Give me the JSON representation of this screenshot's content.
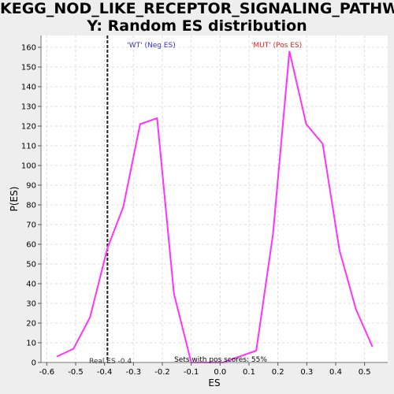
{
  "title_line1": "KEGG_NOD_LIKE_RECEPTOR_SIGNALING_PATHWA",
  "title_line2": "Y: Random ES distribution",
  "label_wt": "'WT' (Neg ES)",
  "label_mut": "'MUT' (Pos ES)",
  "real_es_label": "Real ES -0.4",
  "pos_scores_label": "Sets with pos scores: 55%",
  "colors": {
    "curve": "#ff33ff",
    "wt": "#3333cc",
    "mut": "#dd2222",
    "plot_bg": "#ffffff",
    "page_bg": "#eeeeee"
  },
  "chart_data": {
    "type": "line",
    "xlabel": "ES",
    "ylabel": "P(ES)",
    "xlim": [
      -0.62,
      0.58
    ],
    "ylim": [
      0,
      166
    ],
    "grid": true,
    "x_ticks": [
      -0.6,
      -0.5,
      -0.4,
      -0.3,
      -0.2,
      -0.1,
      0.0,
      0.1,
      0.2,
      0.3,
      0.4,
      0.5
    ],
    "x_tick_labels": [
      "-0.6",
      "-0.5",
      "-0.4",
      "-0.3",
      "-0.2",
      "-0.1",
      "0.0",
      "0.1",
      "0.2",
      "0.3",
      "0.4",
      "0.5"
    ],
    "y_ticks": [
      0,
      10,
      20,
      30,
      40,
      50,
      60,
      70,
      80,
      90,
      100,
      110,
      120,
      130,
      140,
      150,
      160
    ],
    "y_tick_labels": [
      "0",
      "10",
      "20",
      "30",
      "40",
      "50",
      "60",
      "70",
      "80",
      "90",
      "100",
      "110",
      "120",
      "130",
      "140",
      "150",
      "160"
    ],
    "real_es": -0.39,
    "series": [
      {
        "x": [
          -0.565,
          -0.507,
          -0.45,
          -0.39,
          -0.335,
          -0.277,
          -0.218,
          -0.16,
          -0.1,
          0.01,
          0.125,
          0.183,
          0.24,
          0.298,
          0.355,
          0.413,
          0.47,
          0.527
        ],
        "values": [
          3,
          7,
          23,
          58,
          79,
          121,
          124,
          35,
          0,
          0,
          6,
          65,
          158,
          121,
          111,
          57,
          27,
          8
        ]
      }
    ]
  }
}
